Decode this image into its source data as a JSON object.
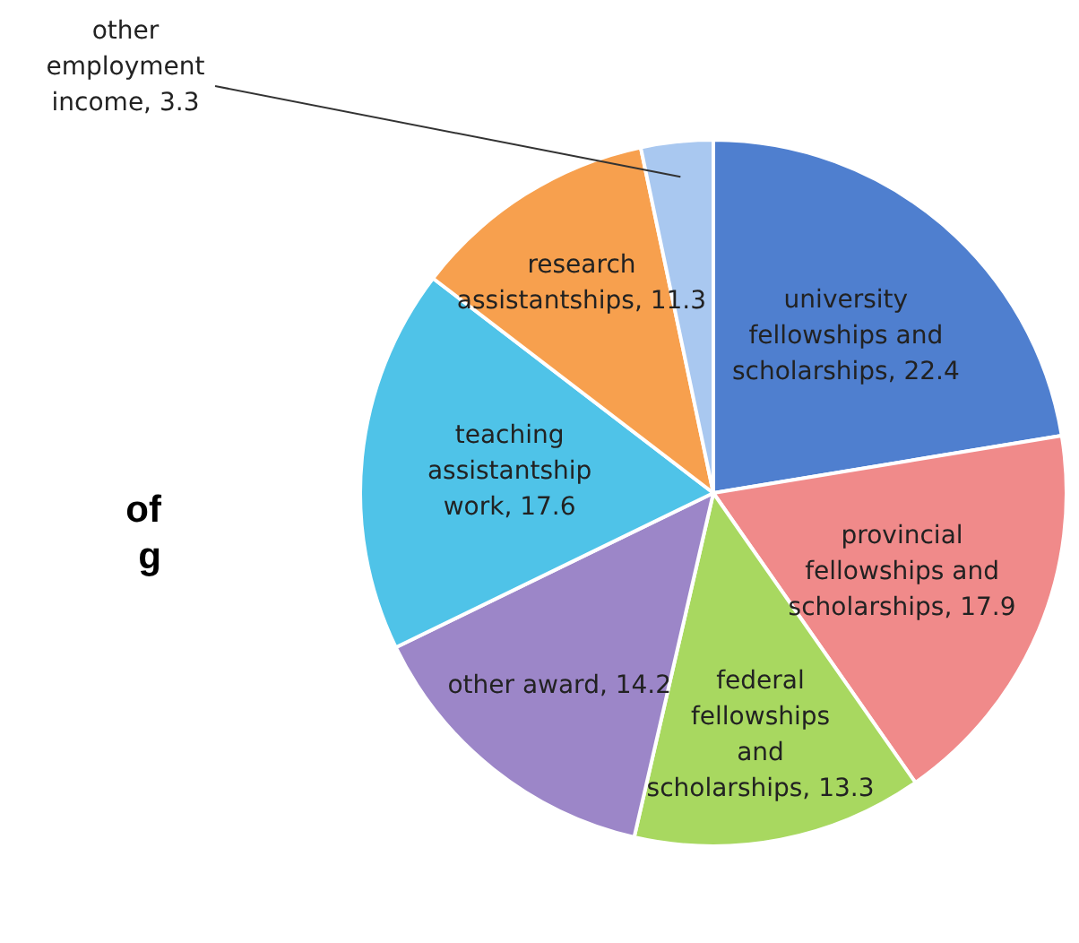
{
  "chart_data": {
    "type": "pie",
    "categories": [
      "university fellowships and scholarships",
      "provincial fellowships and scholarships",
      "federal fellowships and scholarships",
      "other award",
      "teaching assistantship work",
      "research assistantships",
      "other employment income"
    ],
    "values": [
      22.4,
      17.9,
      13.3,
      14.2,
      17.6,
      11.3,
      3.3
    ],
    "colors": [
      "#4f7fcf",
      "#f08a8a",
      "#a8d860",
      "#9c86c8",
      "#4fc3e8",
      "#f7a04e",
      "#a9c8f0"
    ],
    "value_labels": [
      ", 22.4",
      ", 17.9",
      ", 13.3",
      ", 14.2",
      ", 17.6",
      ", 11.3",
      ", 3.3"
    ],
    "legend": false,
    "annotations": [
      "of",
      "g"
    ]
  }
}
